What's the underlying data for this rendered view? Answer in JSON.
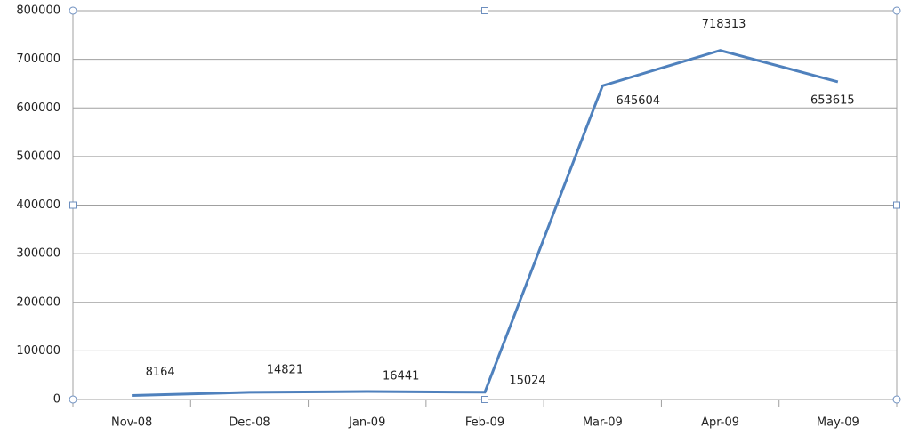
{
  "chart_data": {
    "type": "line",
    "categories": [
      "Nov-08",
      "Dec-08",
      "Jan-09",
      "Feb-09",
      "Mar-09",
      "Apr-09",
      "May-09"
    ],
    "series": [
      {
        "color": "#4f81bd",
        "values": [
          8164,
          14821,
          16441,
          15024,
          645604,
          718313,
          653615
        ]
      }
    ],
    "ylim": [
      0,
      800000
    ],
    "yticks": [
      0,
      100000,
      200000,
      300000,
      400000,
      500000,
      600000,
      700000,
      800000
    ],
    "grid": true
  }
}
